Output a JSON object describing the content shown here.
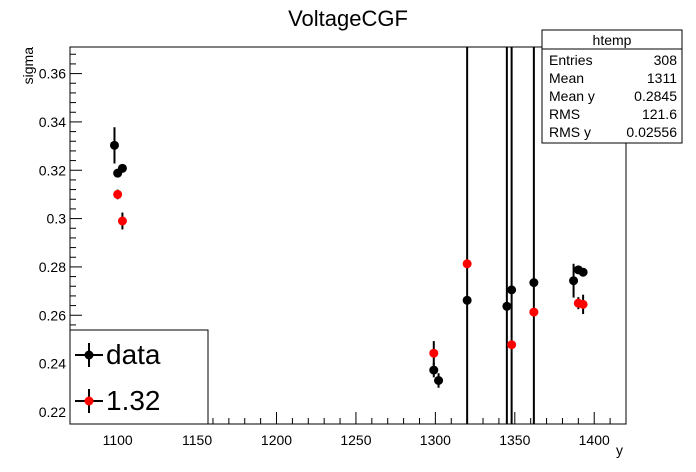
{
  "chart_data": {
    "type": "scatter",
    "title": "VoltageCGF",
    "xlabel": "y",
    "ylabel": "sigma",
    "xlim": [
      1070,
      1420
    ],
    "ylim": [
      0.215,
      0.371
    ],
    "x_ticks": [
      1100,
      1150,
      1200,
      1250,
      1300,
      1350,
      1400
    ],
    "y_ticks": [
      0.22,
      0.24,
      0.26,
      0.28,
      0.3,
      0.32,
      0.34,
      0.36
    ],
    "x_tick_labels": [
      "1100",
      "1150",
      "1200",
      "1250",
      "1300",
      "1350",
      "1400"
    ],
    "y_tick_labels": [
      "0.22",
      "0.24",
      "0.26",
      "0.28",
      "0.3",
      "0.32",
      "0.34",
      "0.36"
    ],
    "series": [
      {
        "name": "data",
        "color": "#000000",
        "points": [
          {
            "x": 1098,
            "y": 0.3303,
            "err": 0.0075
          },
          {
            "x": 1100,
            "y": 0.3188,
            "err": 0.0015
          },
          {
            "x": 1103,
            "y": 0.3208,
            "err": 0.0015
          },
          {
            "x": 1299,
            "y": 0.2373,
            "err": 0.003
          },
          {
            "x": 1302,
            "y": 0.233,
            "err": 0.003
          },
          {
            "x": 1320,
            "y": 0.2662,
            "err": 0.3
          },
          {
            "x": 1345,
            "y": 0.2637,
            "err": 0.3
          },
          {
            "x": 1348,
            "y": 0.2705,
            "err": 0.3
          },
          {
            "x": 1362,
            "y": 0.2735,
            "err": 0.3
          },
          {
            "x": 1387,
            "y": 0.2743,
            "err": 0.007
          },
          {
            "x": 1390,
            "y": 0.2788,
            "err": 0.0015
          },
          {
            "x": 1393,
            "y": 0.2778,
            "err": 0.0015
          }
        ]
      },
      {
        "name": "1.32",
        "color": "#ff0000",
        "points": [
          {
            "x": 1100,
            "y": 0.31,
            "err": 0.002
          },
          {
            "x": 1103,
            "y": 0.299,
            "err": 0.0035
          },
          {
            "x": 1299,
            "y": 0.2443,
            "err": 0.005
          },
          {
            "x": 1320,
            "y": 0.2813,
            "err": 0.0015
          },
          {
            "x": 1348,
            "y": 0.2478,
            "err": 0.0015
          },
          {
            "x": 1362,
            "y": 0.2613,
            "err": 0.0015
          },
          {
            "x": 1390,
            "y": 0.265,
            "err": 0.0025
          },
          {
            "x": 1393,
            "y": 0.2645,
            "err": 0.004
          }
        ]
      }
    ],
    "legend": {
      "position": "bottom-left",
      "entries": [
        "data",
        "1.32"
      ]
    },
    "stats_box": {
      "title": "htemp",
      "rows": [
        {
          "label": "Entries",
          "value": "308"
        },
        {
          "label": "Mean",
          "value": "1311"
        },
        {
          "label": "Mean y",
          "value": "0.2845"
        },
        {
          "label": "RMS",
          "value": "121.6"
        },
        {
          "label": "RMS y",
          "value": "0.02556"
        }
      ]
    }
  }
}
